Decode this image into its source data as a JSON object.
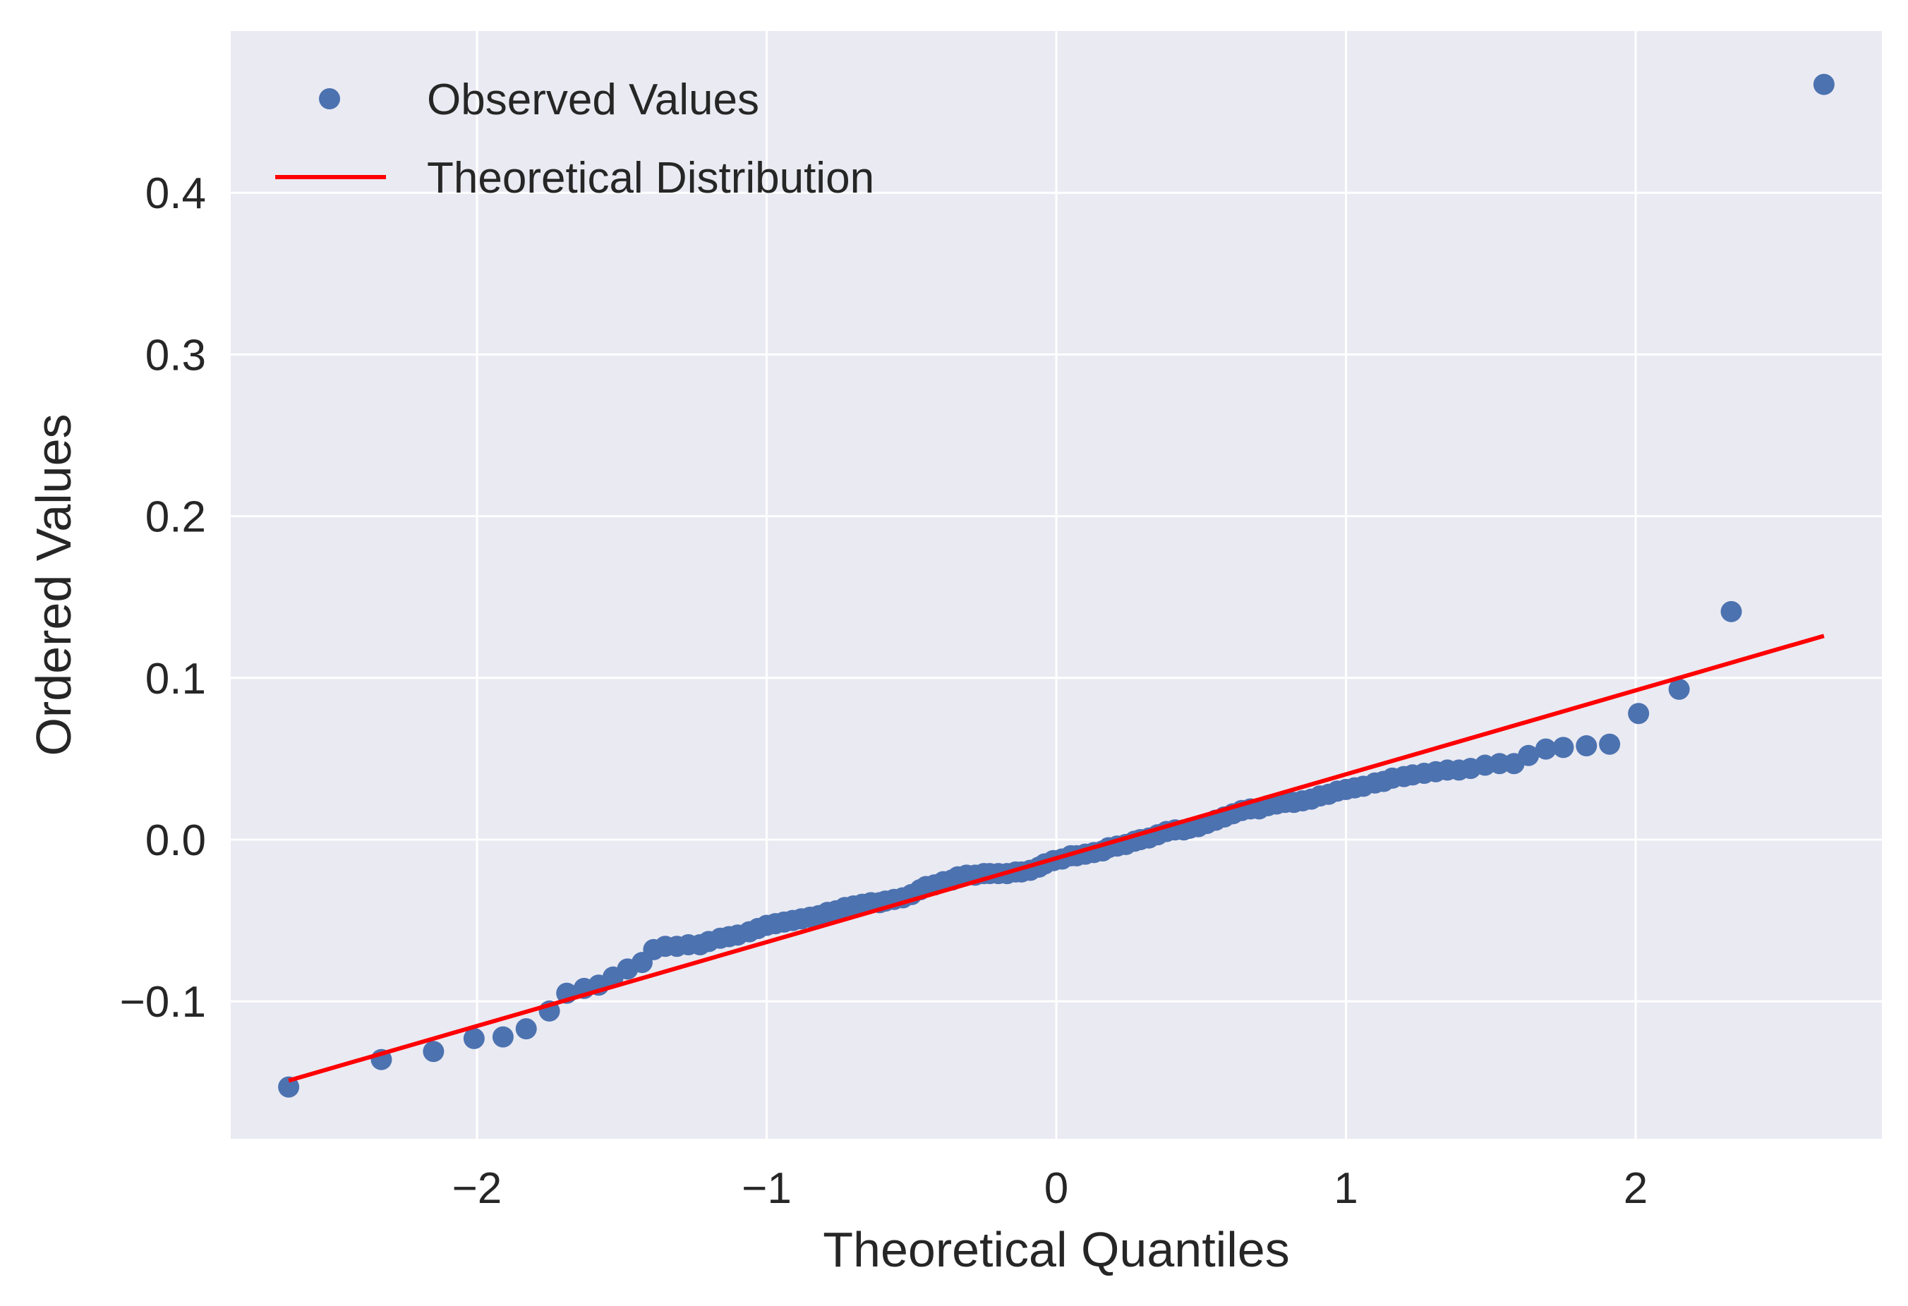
{
  "chart_data": {
    "type": "scatter",
    "title": "",
    "xlabel": "Theoretical Quantiles",
    "ylabel": "Ordered Values",
    "xlim": [
      -2.85,
      2.85
    ],
    "ylim": [
      -0.185,
      0.5
    ],
    "xticks": [
      -2,
      -1,
      0,
      1,
      2
    ],
    "xtick_labels": [
      "−2",
      "−1",
      "0",
      "1",
      "2"
    ],
    "yticks": [
      -0.1,
      0.0,
      0.1,
      0.2,
      0.3,
      0.4
    ],
    "ytick_labels": [
      "−0.1",
      "0.0",
      "0.1",
      "0.2",
      "0.3",
      "0.4"
    ],
    "grid": true,
    "background": "#eaeaf2",
    "legend": {
      "position": "top-left",
      "entries": [
        {
          "label": "Observed Values",
          "marker": "circle",
          "color": "#4c72b0"
        },
        {
          "label": "Theoretical Distribution",
          "marker": "line",
          "color": "#ff0000"
        }
      ]
    },
    "series": [
      {
        "name": "Observed Values",
        "kind": "points",
        "color": "#4c72b0",
        "points": [
          [
            -2.65,
            -0.153
          ],
          [
            -2.33,
            -0.136
          ],
          [
            -2.15,
            -0.131
          ],
          [
            -2.01,
            -0.123
          ],
          [
            -1.91,
            -0.122
          ],
          [
            -1.83,
            -0.117
          ],
          [
            -1.75,
            -0.106
          ],
          [
            -1.69,
            -0.095
          ],
          [
            -1.63,
            -0.092
          ],
          [
            -1.58,
            -0.09
          ],
          [
            -1.53,
            -0.085
          ],
          [
            -1.48,
            -0.08
          ],
          [
            -1.43,
            -0.076
          ],
          [
            -1.39,
            -0.068
          ],
          [
            -1.35,
            -0.066
          ],
          [
            -1.31,
            -0.066
          ],
          [
            -1.27,
            -0.065
          ],
          [
            -1.23,
            -0.065
          ],
          [
            -1.2,
            -0.063
          ],
          [
            -1.16,
            -0.061
          ],
          [
            -1.13,
            -0.06
          ],
          [
            -1.1,
            -0.059
          ],
          [
            -1.06,
            -0.057
          ],
          [
            -1.03,
            -0.055
          ],
          [
            -1.0,
            -0.053
          ],
          [
            -0.97,
            -0.052
          ],
          [
            -0.94,
            -0.051
          ],
          [
            -0.91,
            -0.05
          ],
          [
            -0.88,
            -0.049
          ],
          [
            -0.85,
            -0.048
          ],
          [
            -0.82,
            -0.047
          ],
          [
            -0.79,
            -0.045
          ],
          [
            -0.76,
            -0.044
          ],
          [
            -0.73,
            -0.042
          ],
          [
            -0.7,
            -0.041
          ],
          [
            -0.67,
            -0.04
          ],
          [
            -0.64,
            -0.039
          ],
          [
            -0.61,
            -0.039
          ],
          [
            -0.59,
            -0.038
          ],
          [
            -0.56,
            -0.037
          ],
          [
            -0.53,
            -0.036
          ],
          [
            -0.5,
            -0.034
          ],
          [
            -0.47,
            -0.031
          ],
          [
            -0.45,
            -0.029
          ],
          [
            -0.42,
            -0.028
          ],
          [
            -0.39,
            -0.026
          ],
          [
            -0.36,
            -0.025
          ],
          [
            -0.34,
            -0.023
          ],
          [
            -0.31,
            -0.022
          ],
          [
            -0.28,
            -0.022
          ],
          [
            -0.25,
            -0.021
          ],
          [
            -0.23,
            -0.021
          ],
          [
            -0.2,
            -0.021
          ],
          [
            -0.17,
            -0.021
          ],
          [
            -0.14,
            -0.02
          ],
          [
            -0.12,
            -0.02
          ],
          [
            -0.09,
            -0.019
          ],
          [
            -0.06,
            -0.017
          ],
          [
            -0.04,
            -0.015
          ],
          [
            -0.01,
            -0.013
          ],
          [
            0.02,
            -0.012
          ],
          [
            0.05,
            -0.01
          ],
          [
            0.07,
            -0.01
          ],
          [
            0.1,
            -0.009
          ],
          [
            0.13,
            -0.008
          ],
          [
            0.16,
            -0.007
          ],
          [
            0.18,
            -0.005
          ],
          [
            0.21,
            -0.004
          ],
          [
            0.24,
            -0.003
          ],
          [
            0.27,
            -0.001
          ],
          [
            0.29,
            0.0
          ],
          [
            0.32,
            0.001
          ],
          [
            0.35,
            0.003
          ],
          [
            0.38,
            0.005
          ],
          [
            0.41,
            0.006
          ],
          [
            0.44,
            0.006
          ],
          [
            0.46,
            0.007
          ],
          [
            0.49,
            0.008
          ],
          [
            0.52,
            0.01
          ],
          [
            0.55,
            0.012
          ],
          [
            0.58,
            0.014
          ],
          [
            0.61,
            0.016
          ],
          [
            0.64,
            0.018
          ],
          [
            0.67,
            0.019
          ],
          [
            0.7,
            0.019
          ],
          [
            0.73,
            0.021
          ],
          [
            0.76,
            0.022
          ],
          [
            0.79,
            0.023
          ],
          [
            0.82,
            0.023
          ],
          [
            0.85,
            0.024
          ],
          [
            0.88,
            0.025
          ],
          [
            0.91,
            0.027
          ],
          [
            0.94,
            0.028
          ],
          [
            0.97,
            0.03
          ],
          [
            1.0,
            0.031
          ],
          [
            1.03,
            0.032
          ],
          [
            1.06,
            0.033
          ],
          [
            1.1,
            0.035
          ],
          [
            1.13,
            0.036
          ],
          [
            1.16,
            0.038
          ],
          [
            1.2,
            0.039
          ],
          [
            1.23,
            0.04
          ],
          [
            1.27,
            0.041
          ],
          [
            1.31,
            0.042
          ],
          [
            1.35,
            0.043
          ],
          [
            1.39,
            0.043
          ],
          [
            1.43,
            0.044
          ],
          [
            1.48,
            0.046
          ],
          [
            1.53,
            0.047
          ],
          [
            1.58,
            0.047
          ],
          [
            1.63,
            0.052
          ],
          [
            1.69,
            0.056
          ],
          [
            1.75,
            0.057
          ],
          [
            1.83,
            0.058
          ],
          [
            1.91,
            0.059
          ],
          [
            2.01,
            0.078
          ],
          [
            2.15,
            0.093
          ],
          [
            2.33,
            0.141
          ],
          [
            2.65,
            0.467
          ]
        ]
      },
      {
        "name": "Theoretical Distribution",
        "kind": "line",
        "color": "#ff0000",
        "x": [
          -2.65,
          2.65
        ],
        "y": [
          -0.149,
          0.126
        ]
      }
    ]
  }
}
